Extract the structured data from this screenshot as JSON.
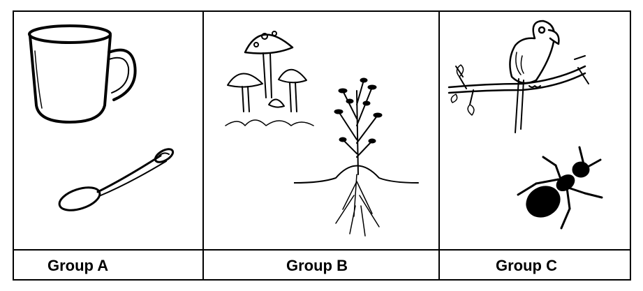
{
  "groups": [
    {
      "label": "Group A",
      "items": [
        "mug",
        "spoon"
      ]
    },
    {
      "label": "Group B",
      "items": [
        "mushrooms",
        "plant"
      ]
    },
    {
      "label": "Group C",
      "items": [
        "parrot",
        "ant"
      ]
    }
  ]
}
